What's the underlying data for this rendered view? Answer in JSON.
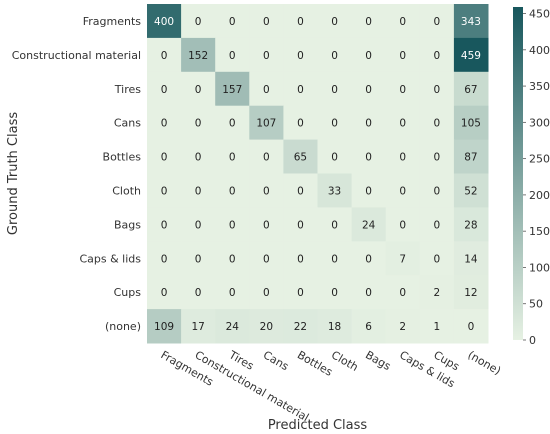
{
  "chart_data": {
    "type": "heatmap",
    "xlabel": "Predicted Class",
    "ylabel": "Ground Truth Class",
    "x_categories": [
      "Fragments",
      "Constructional material",
      "Tires",
      "Cans",
      "Bottles",
      "Cloth",
      "Bags",
      "Caps & lids",
      "Cups",
      "(none)"
    ],
    "y_categories": [
      "Fragments",
      "Constructional material",
      "Tires",
      "Cans",
      "Bottles",
      "Cloth",
      "Bags",
      "Caps & lids",
      "Cups",
      "(none)"
    ],
    "values": [
      [
        400,
        0,
        0,
        0,
        0,
        0,
        0,
        0,
        0,
        343
      ],
      [
        0,
        152,
        0,
        0,
        0,
        0,
        0,
        0,
        0,
        459
      ],
      [
        0,
        0,
        157,
        0,
        0,
        0,
        0,
        0,
        0,
        67
      ],
      [
        0,
        0,
        0,
        107,
        0,
        0,
        0,
        0,
        0,
        105
      ],
      [
        0,
        0,
        0,
        0,
        65,
        0,
        0,
        0,
        0,
        87
      ],
      [
        0,
        0,
        0,
        0,
        0,
        33,
        0,
        0,
        0,
        52
      ],
      [
        0,
        0,
        0,
        0,
        0,
        0,
        24,
        0,
        0,
        28
      ],
      [
        0,
        0,
        0,
        0,
        0,
        0,
        0,
        7,
        0,
        14
      ],
      [
        0,
        0,
        0,
        0,
        0,
        0,
        0,
        0,
        2,
        12
      ],
      [
        109,
        17,
        24,
        20,
        22,
        18,
        6,
        2,
        1,
        0
      ]
    ],
    "colorbar": {
      "range": [
        0,
        459
      ],
      "ticks": [
        0,
        50,
        100,
        150,
        200,
        250,
        300,
        350,
        400,
        450
      ],
      "low_color": "#e6f1e3",
      "high_color": "#18575d"
    },
    "grid": false
  }
}
